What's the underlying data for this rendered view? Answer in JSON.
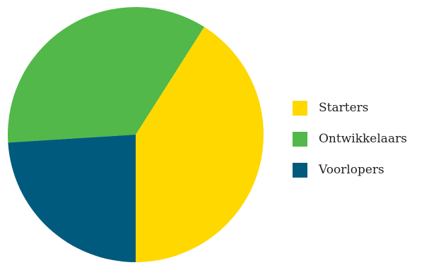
{
  "chart_data": {
    "type": "pie",
    "categories": [
      "Starters",
      "Ontwikkelaars",
      "Voorlopers"
    ],
    "values": [
      41,
      35,
      24
    ],
    "colors": [
      "#FFD800",
      "#52B84A",
      "#005A7E"
    ],
    "legend_position": "right",
    "start_angle_degrees": 180,
    "direction": "counterclockwise"
  }
}
